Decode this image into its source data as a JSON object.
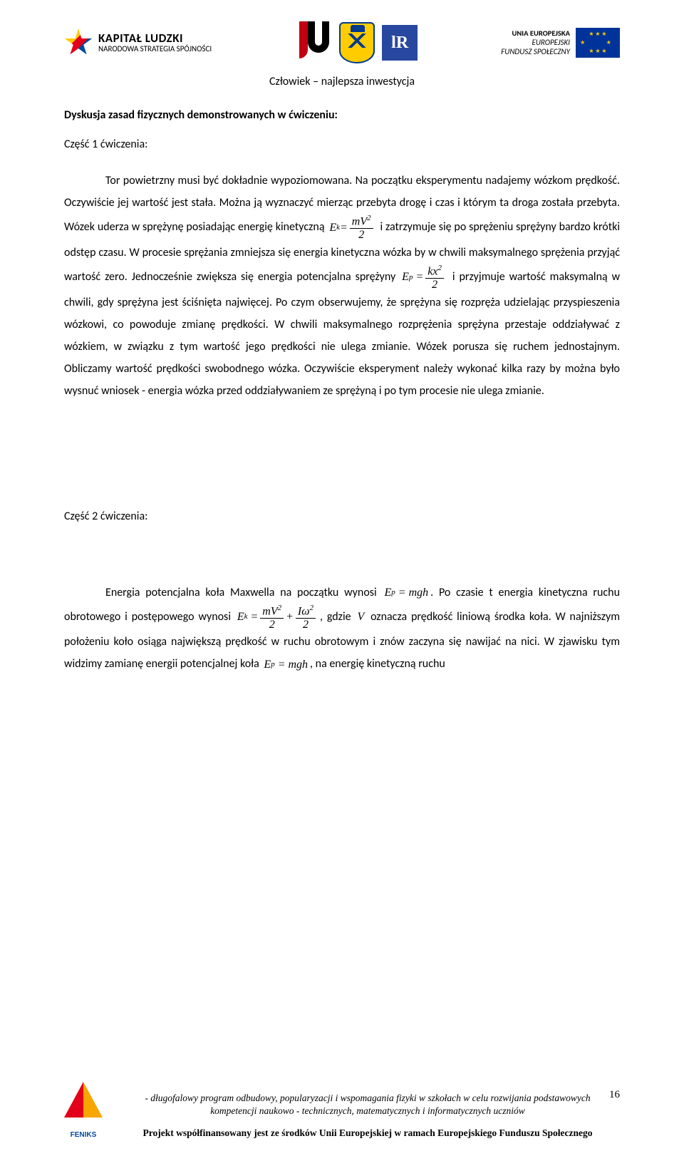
{
  "header": {
    "kl_bold": "KAPITAŁ LUDZKI",
    "kl_sub": "NARODOWA STRATEGIA SPÓJNOŚCI",
    "ur_text": "lR",
    "eu_line1": "UNIA EUROPEJSKA",
    "eu_line2": "EUROPEJSKI",
    "eu_line3": "FUNDUSZ SPOŁECZNY"
  },
  "subtitle": "Człowiek – najlepsza inwestycja",
  "h1": "Dyskusja zasad fizycznych demonstrowanych w ćwiczeniu:",
  "part1_label": "Część 1 ćwiczenia:",
  "p1_a": "Tor powietrzny musi być dokładnie wypoziomowana. Na początku eksperymentu nadajemy wózkom prędkość. Oczywiście jej wartość jest stała. Można ją wyznaczyć mierząc przebyta drogę i czas i którym ta droga została przebyta. Wózek uderza w sprężynę posiadając energię kinetyczną ",
  "p1_b": " i zatrzymuje się po sprężeniu sprężyny bardzo krótki odstęp czasu. W procesie sprężania zmniejsza się energia kinetyczna wózka by w chwili maksymalnego sprężenia przyjąć wartość zero. Jednocześnie zwiększa się energia potencjalna sprężyny ",
  "p1_c": " i przyjmuje wartość maksymalną w chwili, gdy sprężyna jest ściśnięta najwięcej. Po czym obserwujemy, że sprężyna się rozpręża udzielając przyspieszenia wózkowi, co powoduje zmianę prędkości. W chwili maksymalnego rozprężenia sprężyna przestaje oddziaływać z wózkiem, w związku z tym wartość jego prędkości nie ulega zmianie. Wózek porusza się ruchem jednostajnym. Obliczamy wartość prędkości swobodnego wózka. Oczywiście eksperyment należy wykonać kilka razy by można było wysnuć wniosek - energia wózka przed oddziaływaniem ze sprężyną i po tym procesie nie ulega zmianie.",
  "part2_label": "Część 2 ćwiczenia:",
  "p2_a": "Energia potencjalna koła Maxwella na początku wynosi ",
  "p2_b": ". Po czasie t energia kinetyczna ruchu obrotowego  i postępowego wynosi ",
  "p2_c": ", gdzie ",
  "p2_d": " oznacza prędkość liniową środka koła. W najniższym położeniu koło osiąga największą prędkość w ruchu obrotowym i znów zaczyna się nawijać na nici. W zjawisku tym widzimy zamianę energii potencjalnej koła ",
  "p2_e": ", na energię kinetyczną ruchu",
  "formulas": {
    "ek_label": "E",
    "ek_sub": "k",
    "eq": "=",
    "mv2_num": "mV",
    "sq": "2",
    "two": "2",
    "ep_label": "E",
    "ep_sub": "p",
    "kx2_num": "kx",
    "mgh": "mgh",
    "plus": "+",
    "iw_num": "Iω",
    "V": "V"
  },
  "footer": {
    "feniks": "FENIKS",
    "italic1": "- długofalowy program odbudowy, popularyzacji i wspomagania fizyki w szkołach w celu rozwijania podstawowych",
    "italic2": "kompetencji  naukowo - technicznych, matematycznych i informatycznych uczniów",
    "bold": "Projekt współfinansowany jest ze środków Unii Europejskiej w ramach Europejskiego Funduszu Społecznego",
    "page": "16"
  }
}
